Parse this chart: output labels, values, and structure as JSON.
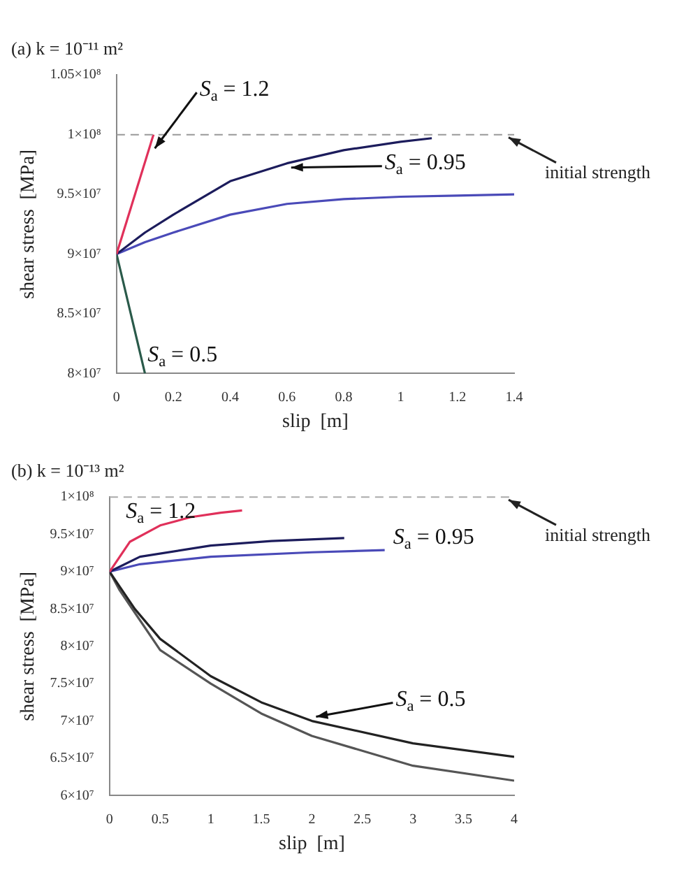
{
  "chart_data": [
    {
      "type": "line",
      "title": "(a) k = 10⁻¹¹ m²",
      "xlabel": "slip  [m]",
      "ylabel": "shear stress  [MPa]",
      "xlim": [
        0,
        1.4
      ],
      "xticks": [
        0,
        0.2,
        0.4,
        0.6,
        0.8,
        1,
        1.2,
        1.4
      ],
      "ylim": [
        80000000,
        105000000
      ],
      "yticks": [
        {
          "value": 80000000,
          "label": "8×10⁷"
        },
        {
          "value": 85000000,
          "label": "8.5×10⁷"
        },
        {
          "value": 90000000,
          "label": "9×10⁷"
        },
        {
          "value": 95000000,
          "label": "9.5×10⁷"
        },
        {
          "value": 100000000,
          "label": "1×10⁸"
        },
        {
          "value": 105000000,
          "label": "1.05×10⁸"
        }
      ],
      "grid": false,
      "legend": false,
      "series": [
        {
          "color": "#e0305a",
          "x": [
            0,
            0.13
          ],
          "values": [
            90000000,
            100000000
          ]
        },
        {
          "color": "#1c1c5c",
          "x": [
            0,
            0.1,
            0.2,
            0.4,
            0.6,
            0.8,
            1.0,
            1.11
          ],
          "values": [
            90000000,
            91800000,
            93300000,
            96100000,
            97600000,
            98700000,
            99400000,
            99700000
          ]
        },
        {
          "color": "#4a4ab8",
          "x": [
            0,
            0.1,
            0.2,
            0.4,
            0.6,
            0.8,
            1.0,
            1.2,
            1.4
          ],
          "values": [
            90000000,
            91000000,
            91800000,
            93300000,
            94200000,
            94600000,
            94800000,
            94900000,
            95000000
          ]
        },
        {
          "color": "#2a5a4a",
          "x": [
            0,
            0.05,
            0.1
          ],
          "values": [
            90000000,
            85000000,
            80000000
          ]
        }
      ],
      "ref_lines": [
        {
          "axis": "y",
          "value": 100000000,
          "label": "initial strength",
          "color": "#999999",
          "line_style": "dashed"
        }
      ],
      "annotations": [
        {
          "text": "S$_{a}$ = 1.2",
          "x": 0.12,
          "y": 98500000
        },
        {
          "text": "S$_{a}$ = 0.95",
          "x": 0.6,
          "y": 97600000
        },
        {
          "text": "S$_{a}$ = 0.5",
          "x": 0.05,
          "y": 85000000
        }
      ]
    },
    {
      "type": "line",
      "title": "(b) k = 10⁻¹³ m²",
      "xlabel": "slip  [m]",
      "ylabel": "shear stress  [MPa]",
      "xlim": [
        0,
        4
      ],
      "xticks": [
        0,
        0.5,
        1,
        1.5,
        2,
        2.5,
        3,
        3.5,
        4
      ],
      "ylim": [
        60000000,
        100000000
      ],
      "yticks": [
        {
          "value": 60000000,
          "label": "6×10⁷"
        },
        {
          "value": 65000000,
          "label": "6.5×10⁷"
        },
        {
          "value": 70000000,
          "label": "7×10⁷"
        },
        {
          "value": 75000000,
          "label": "7.5×10⁷"
        },
        {
          "value": 80000000,
          "label": "8×10⁷"
        },
        {
          "value": 85000000,
          "label": "8.5×10⁷"
        },
        {
          "value": 90000000,
          "label": "9×10⁷"
        },
        {
          "value": 95000000,
          "label": "9.5×10⁷"
        },
        {
          "value": 100000000,
          "label": "1×10⁸"
        }
      ],
      "grid": false,
      "legend": false,
      "series": [
        {
          "color": "#e0305a",
          "x": [
            0,
            0.2,
            0.5,
            0.8,
            1.1,
            1.31
          ],
          "values": [
            90000000,
            94000000,
            96200000,
            97300000,
            97900000,
            98200000
          ]
        },
        {
          "color": "#1c1c5c",
          "x": [
            0,
            0.3,
            1,
            1.6,
            2.32
          ],
          "values": [
            90000000,
            92000000,
            93500000,
            94100000,
            94500000
          ]
        },
        {
          "color": "#4a4ab8",
          "x": [
            0,
            0.3,
            1,
            2,
            2.72
          ],
          "values": [
            90000000,
            91000000,
            92000000,
            92600000,
            92900000
          ]
        },
        {
          "color": "#222222",
          "x": [
            0,
            0.1,
            0.25,
            0.5,
            1,
            1.5,
            2,
            3,
            4
          ],
          "values": [
            90000000,
            88000000,
            85000000,
            81000000,
            76000000,
            72500000,
            70000000,
            67000000,
            65200000
          ]
        },
        {
          "color": "#555555",
          "x": [
            0,
            0.1,
            0.25,
            0.5,
            1,
            1.5,
            2,
            3,
            4
          ],
          "values": [
            90000000,
            87500000,
            84500000,
            79500000,
            75000000,
            71000000,
            68000000,
            64000000,
            62000000
          ]
        }
      ],
      "ref_lines": [
        {
          "axis": "y",
          "value": 100000000,
          "label": "initial strength",
          "color": "#aaaaaa",
          "line_style": "dashed"
        }
      ],
      "annotations": [
        {
          "text": "S$_{a}$ = 1.2",
          "x": 0.3,
          "y": 95000000
        },
        {
          "text": "S$_{a}$ = 0.95",
          "x": 2.32,
          "y": 94500000
        },
        {
          "text": "S$_{a}$ = 0.5",
          "x": 2,
          "y": 70000000
        }
      ]
    }
  ]
}
